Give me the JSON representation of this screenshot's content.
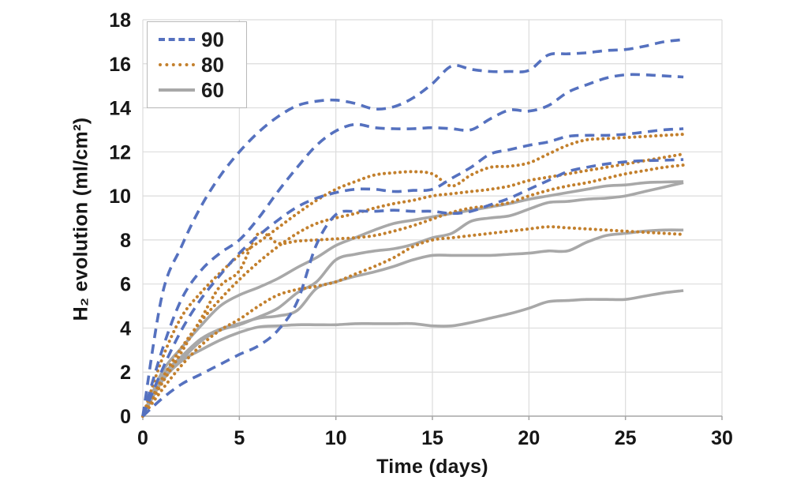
{
  "chart_data": {
    "type": "line",
    "title": "",
    "xlabel": "Time (days)",
    "ylabel": "H₂ evolution (ml/cm²)",
    "xlim": [
      0,
      30
    ],
    "ylim": [
      0,
      18
    ],
    "xticks": [
      0,
      5,
      10,
      15,
      20,
      25,
      30
    ],
    "yticks": [
      0,
      2,
      4,
      6,
      8,
      10,
      12,
      14,
      16,
      18
    ],
    "grid": true,
    "legend_position": "top-left",
    "colors": {
      "series_90": "#5571bf",
      "series_80": "#c3802d",
      "series_60": "#a8a8a8",
      "gridline": "#dcdcdc",
      "axis_line": "#a6a6a6",
      "text": "#161616"
    },
    "x_days": [
      0,
      1,
      2,
      3,
      4,
      5,
      6,
      7,
      8,
      9,
      10,
      11,
      12,
      13,
      14,
      15,
      16,
      17,
      18,
      19,
      20,
      21,
      22,
      23,
      24,
      25,
      26,
      27,
      28
    ],
    "groups": [
      {
        "label": "90",
        "style": "dashed",
        "color": "#5571bf",
        "curves": [
          [
            0,
            5.5,
            7.7,
            9.5,
            10.9,
            12.0,
            12.9,
            13.6,
            14.1,
            14.3,
            14.35,
            14.2,
            13.95,
            14.05,
            14.45,
            15.1,
            15.9,
            15.75,
            15.65,
            15.65,
            15.7,
            16.4,
            16.45,
            16.5,
            16.6,
            16.65,
            16.8,
            17.0,
            17.1
          ],
          [
            0,
            3.0,
            5.3,
            6.6,
            7.4,
            8.0,
            9.0,
            10.2,
            11.3,
            12.3,
            12.95,
            13.25,
            13.1,
            13.05,
            13.05,
            13.1,
            13.05,
            13.0,
            13.5,
            13.9,
            13.85,
            14.1,
            14.7,
            15.05,
            15.35,
            15.5,
            15.5,
            15.45,
            15.4
          ],
          [
            0,
            2.1,
            3.9,
            5.3,
            6.4,
            7.4,
            8.2,
            8.9,
            9.5,
            9.9,
            10.15,
            10.3,
            10.3,
            10.2,
            10.25,
            10.3,
            10.8,
            11.3,
            11.9,
            12.1,
            12.3,
            12.45,
            12.7,
            12.75,
            12.75,
            12.8,
            12.9,
            13.0,
            13.05
          ],
          [
            0,
            0.8,
            1.45,
            1.9,
            2.35,
            2.8,
            3.2,
            3.9,
            5.2,
            7.8,
            9.15,
            9.3,
            9.3,
            9.35,
            9.3,
            9.3,
            9.2,
            9.3,
            9.6,
            9.9,
            10.3,
            10.7,
            11.1,
            11.3,
            11.45,
            11.55,
            11.6,
            11.62,
            11.65
          ]
        ]
      },
      {
        "label": "80",
        "style": "dotted",
        "color": "#c3802d",
        "curves": [
          [
            0,
            2.6,
            4.5,
            5.6,
            6.5,
            7.3,
            7.9,
            8.55,
            9.2,
            9.8,
            10.3,
            10.65,
            10.95,
            11.05,
            11.1,
            11.0,
            10.45,
            10.95,
            11.3,
            11.35,
            11.5,
            11.9,
            12.3,
            12.55,
            12.6,
            12.65,
            12.7,
            12.75,
            12.8
          ],
          [
            0,
            1.7,
            3.1,
            4.3,
            5.3,
            6.2,
            7.0,
            7.7,
            8.3,
            8.75,
            9.0,
            9.2,
            9.45,
            9.65,
            9.8,
            10.0,
            10.1,
            10.2,
            10.3,
            10.45,
            10.7,
            10.85,
            11.0,
            11.15,
            11.3,
            11.45,
            11.6,
            11.75,
            11.9
          ],
          [
            0,
            1.5,
            2.9,
            4.4,
            5.9,
            6.6,
            8.3,
            7.85,
            7.95,
            8.0,
            8.05,
            8.1,
            8.2,
            8.4,
            8.65,
            8.95,
            9.25,
            9.45,
            9.55,
            9.7,
            10.0,
            10.25,
            10.45,
            10.6,
            10.8,
            11.0,
            11.15,
            11.3,
            11.4
          ],
          [
            0,
            1.2,
            2.3,
            3.2,
            3.9,
            4.4,
            5.0,
            5.5,
            5.75,
            5.9,
            6.1,
            6.45,
            6.8,
            7.2,
            7.7,
            8.0,
            8.1,
            8.2,
            8.3,
            8.4,
            8.5,
            8.6,
            8.55,
            8.5,
            8.45,
            8.4,
            8.35,
            8.3,
            8.25
          ]
        ]
      },
      {
        "label": "60",
        "style": "solid",
        "color": "#a8a8a8",
        "curves": [
          [
            0,
            2.0,
            3.1,
            4.1,
            5.0,
            5.5,
            5.85,
            6.25,
            6.75,
            7.2,
            7.75,
            8.1,
            8.45,
            8.75,
            8.9,
            9.05,
            9.2,
            9.35,
            9.5,
            9.65,
            9.85,
            10.0,
            10.15,
            10.3,
            10.45,
            10.5,
            10.6,
            10.63,
            10.65
          ],
          [
            0,
            1.6,
            2.55,
            3.4,
            3.9,
            4.15,
            4.5,
            4.9,
            5.6,
            6.1,
            7.1,
            7.35,
            7.5,
            7.6,
            7.8,
            8.1,
            8.3,
            8.85,
            9.0,
            9.1,
            9.4,
            9.7,
            9.75,
            9.85,
            9.9,
            10.0,
            10.2,
            10.4,
            10.6
          ],
          [
            0,
            1.8,
            2.7,
            3.5,
            3.95,
            4.2,
            4.45,
            4.55,
            4.8,
            5.8,
            6.1,
            6.35,
            6.55,
            6.8,
            7.1,
            7.3,
            7.3,
            7.3,
            7.3,
            7.35,
            7.4,
            7.5,
            7.5,
            7.9,
            8.2,
            8.3,
            8.4,
            8.45,
            8.45
          ],
          [
            0,
            1.6,
            2.5,
            3.0,
            3.45,
            3.8,
            4.05,
            4.1,
            4.15,
            4.15,
            4.15,
            4.2,
            4.2,
            4.2,
            4.2,
            4.1,
            4.1,
            4.25,
            4.45,
            4.65,
            4.9,
            5.2,
            5.25,
            5.3,
            5.3,
            5.3,
            5.45,
            5.6,
            5.7
          ]
        ]
      }
    ]
  }
}
